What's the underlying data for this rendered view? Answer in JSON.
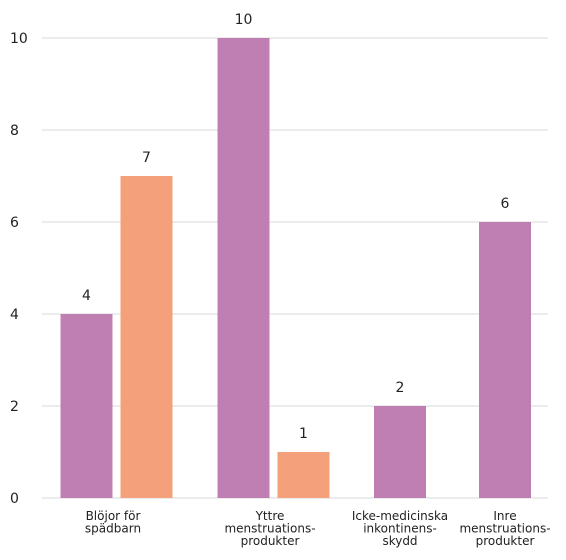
{
  "chart_data": {
    "type": "bar",
    "categories": [
      [
        "Blöjor för",
        "spädbarn"
      ],
      [
        "Yttre",
        "menstruations-",
        "produkter"
      ],
      [
        "Icke-medicinska",
        "inkontinens-",
        "skydd"
      ],
      [
        "Inre",
        "menstruations-",
        "produkter"
      ]
    ],
    "series": [
      {
        "color": "#c07fb3",
        "values": [
          4,
          10,
          2,
          6
        ]
      },
      {
        "color": "#f4a07a",
        "values": [
          7,
          1,
          null,
          null
        ]
      }
    ],
    "yticks": [
      0,
      2,
      4,
      6,
      8,
      10
    ],
    "ylim": [
      0,
      10
    ],
    "grid": true,
    "data_labels": true,
    "colors": {
      "grid": "#d8d8d8",
      "text": "#222222",
      "background": "#ffffff"
    }
  }
}
